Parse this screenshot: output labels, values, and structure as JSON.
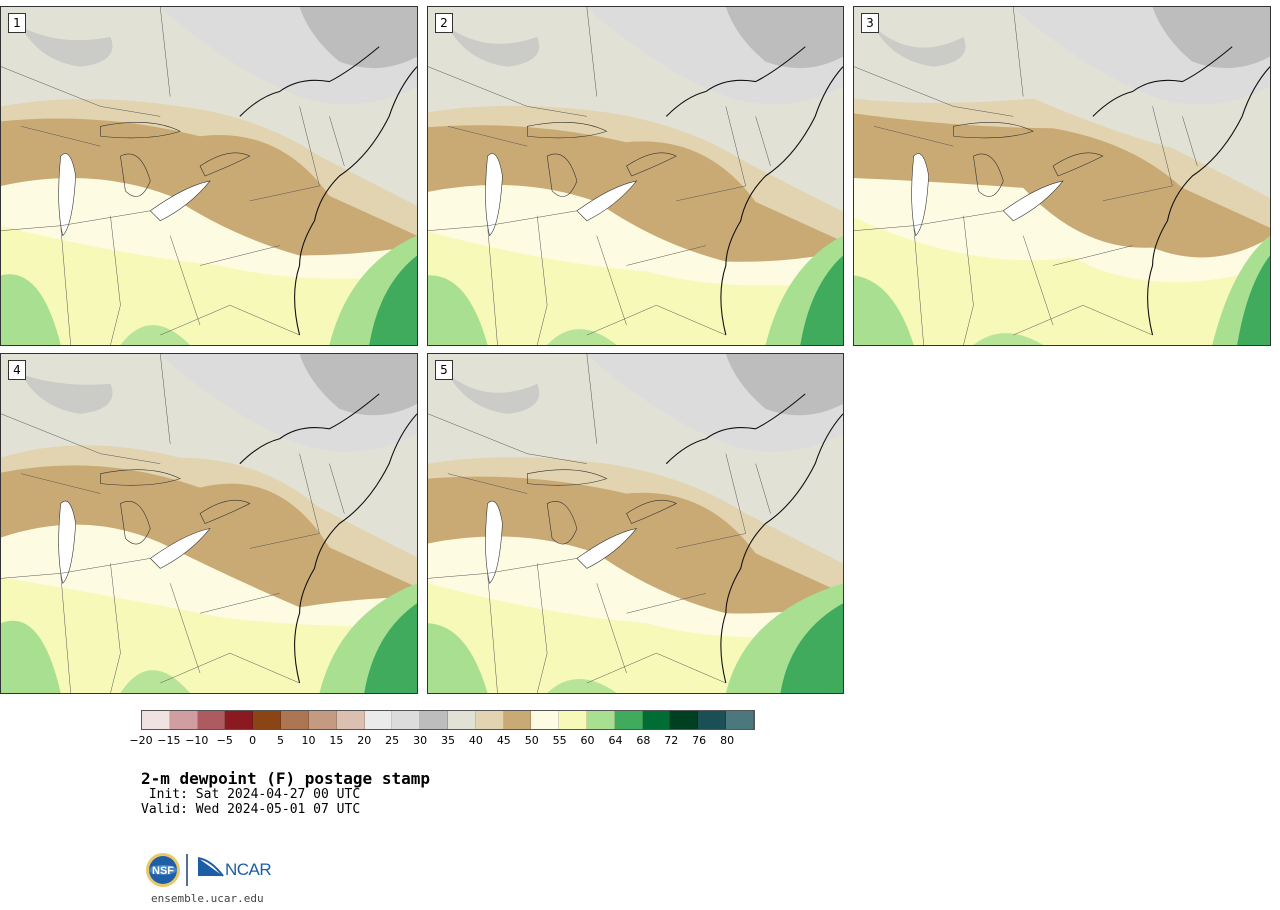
{
  "panels": [
    {
      "label": "1"
    },
    {
      "label": "2"
    },
    {
      "label": "3"
    },
    {
      "label": "4"
    },
    {
      "label": "5"
    }
  ],
  "colorbar": {
    "colors": [
      "#efe2e1",
      "#d09da0",
      "#ad5b60",
      "#8b1a20",
      "#8b4414",
      "#ac7653",
      "#c49a81",
      "#dbbfb0",
      "#ebebeb",
      "#dcdcdc",
      "#bdbdbd",
      "#e2e1d6",
      "#e2d4b0",
      "#c9aa74",
      "#fdfbe2",
      "#f6f9b8",
      "#a9df91",
      "#41ab5d",
      "#006d34",
      "#003f22",
      "#1b4f55",
      "#4b787c"
    ],
    "ticks": [
      "−20",
      "−15",
      "−10",
      "−5",
      "0",
      "5",
      "10",
      "15",
      "20",
      "25",
      "30",
      "35",
      "40",
      "45",
      "50",
      "55",
      "60",
      "64",
      "68",
      "72",
      "76",
      "80"
    ]
  },
  "title": "2-m dewpoint (F) postage stamp",
  "init": " Init: Sat 2024-04-27 00 UTC",
  "valid": "Valid: Wed 2024-05-01 07 UTC",
  "footer": {
    "nsf_logo": "NSF",
    "ncar_logo": "NCAR",
    "url": "ensemble.ucar.edu"
  }
}
